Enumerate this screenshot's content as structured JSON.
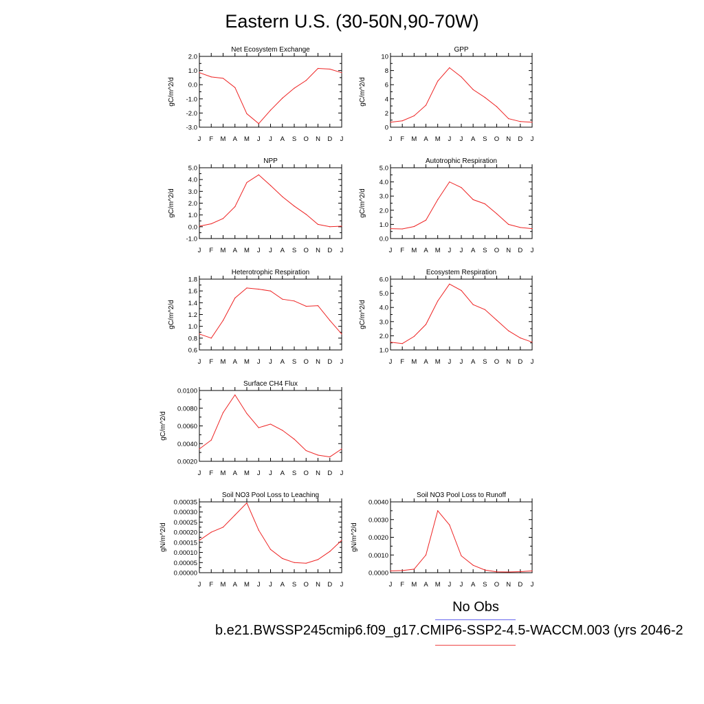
{
  "title": "Eastern U.S. (30-50N,90-70W)",
  "legend": {
    "obs_label": "No Obs",
    "case_label": "b.e21.BWSSP245cmip6.f09_g17.CMIP6-SSP2-4.5-WACCM.003 (yrs 2046-2",
    "obs_color": "#6666ee",
    "case_color": "#ee2222"
  },
  "chart_data": [
    {
      "type": "line",
      "title": "Net Ecosystem Exchange",
      "ylabel": "gC/m^2/d",
      "categories": [
        "J",
        "F",
        "M",
        "A",
        "M",
        "J",
        "J",
        "A",
        "S",
        "O",
        "N",
        "D",
        "J"
      ],
      "ylim": [
        -3.0,
        2.0
      ],
      "yticks": [
        "-3.0",
        "-2.0",
        "-1.0",
        "0.0",
        "1.0",
        "2.0"
      ],
      "series": [
        {
          "values": [
            0.85,
            0.55,
            0.45,
            -0.2,
            -2.05,
            -2.75,
            -1.8,
            -0.95,
            -0.25,
            0.3,
            1.15,
            1.1,
            0.85
          ]
        }
      ]
    },
    {
      "type": "line",
      "title": "GPP",
      "ylabel": "gC/m^2/d",
      "categories": [
        "J",
        "F",
        "M",
        "A",
        "M",
        "J",
        "J",
        "A",
        "S",
        "O",
        "N",
        "D",
        "J"
      ],
      "ylim": [
        0,
        10
      ],
      "yticks": [
        "0",
        "2",
        "4",
        "6",
        "8",
        "10"
      ],
      "series": [
        {
          "values": [
            0.7,
            0.9,
            1.6,
            3.1,
            6.5,
            8.4,
            7.1,
            5.3,
            4.2,
            2.9,
            1.2,
            0.8,
            0.7
          ]
        }
      ]
    },
    {
      "type": "line",
      "title": "NPP",
      "ylabel": "gC/m^2/d",
      "categories": [
        "J",
        "F",
        "M",
        "A",
        "M",
        "J",
        "J",
        "A",
        "S",
        "O",
        "N",
        "D",
        "J"
      ],
      "ylim": [
        -1.0,
        5.0
      ],
      "yticks": [
        "-1.0",
        "0.0",
        "1.0",
        "2.0",
        "3.0",
        "4.0",
        "5.0"
      ],
      "series": [
        {
          "values": [
            0.05,
            0.25,
            0.7,
            1.7,
            3.75,
            4.4,
            3.5,
            2.55,
            1.75,
            1.05,
            0.2,
            0.0,
            0.05
          ]
        }
      ]
    },
    {
      "type": "line",
      "title": "Autotrophic Respiration",
      "ylabel": "gC/m^2/d",
      "categories": [
        "J",
        "F",
        "M",
        "A",
        "M",
        "J",
        "J",
        "A",
        "S",
        "O",
        "N",
        "D",
        "J"
      ],
      "ylim": [
        0.0,
        5.0
      ],
      "yticks": [
        "0.0",
        "1.0",
        "2.0",
        "3.0",
        "4.0",
        "5.0"
      ],
      "series": [
        {
          "values": [
            0.7,
            0.68,
            0.85,
            1.3,
            2.75,
            4.0,
            3.6,
            2.75,
            2.45,
            1.75,
            1.0,
            0.78,
            0.7
          ]
        }
      ]
    },
    {
      "type": "line",
      "title": "Heterotrophic Respiration",
      "ylabel": "gC/m^2/d",
      "categories": [
        "J",
        "F",
        "M",
        "A",
        "M",
        "J",
        "J",
        "A",
        "S",
        "O",
        "N",
        "D",
        "J"
      ],
      "ylim": [
        0.6,
        1.8
      ],
      "yticks": [
        "0.6",
        "0.8",
        "1.0",
        "1.2",
        "1.4",
        "1.6",
        "1.8"
      ],
      "series": [
        {
          "values": [
            0.87,
            0.8,
            1.1,
            1.48,
            1.65,
            1.63,
            1.6,
            1.46,
            1.43,
            1.34,
            1.35,
            1.1,
            0.87
          ]
        }
      ]
    },
    {
      "type": "line",
      "title": "Ecosystem Respiration",
      "ylabel": "gC/m^2/d",
      "categories": [
        "J",
        "F",
        "M",
        "A",
        "M",
        "J",
        "J",
        "A",
        "S",
        "O",
        "N",
        "D",
        "J"
      ],
      "ylim": [
        1.0,
        6.0
      ],
      "yticks": [
        "1.0",
        "2.0",
        "3.0",
        "4.0",
        "5.0",
        "6.0"
      ],
      "series": [
        {
          "values": [
            1.55,
            1.45,
            1.95,
            2.8,
            4.45,
            5.65,
            5.2,
            4.2,
            3.85,
            3.1,
            2.35,
            1.85,
            1.55
          ]
        }
      ]
    },
    {
      "type": "line",
      "title": "Surface CH4 Flux",
      "ylabel": "gC/m^2/d",
      "categories": [
        "J",
        "F",
        "M",
        "A",
        "M",
        "J",
        "J",
        "A",
        "S",
        "O",
        "N",
        "D",
        "J"
      ],
      "ylim": [
        0.002,
        0.01
      ],
      "yticks": [
        "0.0020",
        "0.0040",
        "0.0060",
        "0.0080",
        "0.0100"
      ],
      "series": [
        {
          "values": [
            0.0034,
            0.0044,
            0.0075,
            0.0095,
            0.0074,
            0.0058,
            0.0062,
            0.0055,
            0.0045,
            0.0032,
            0.0027,
            0.0025,
            0.0034
          ]
        }
      ]
    },
    null,
    {
      "type": "line",
      "title": "Soil NO3 Pool Loss to Leaching",
      "ylabel": "gN/m^2/d",
      "categories": [
        "J",
        "F",
        "M",
        "A",
        "M",
        "J",
        "J",
        "A",
        "S",
        "O",
        "N",
        "D",
        "J"
      ],
      "ylim": [
        0,
        0.00035
      ],
      "yticks": [
        "0.00000",
        "0.00005",
        "0.00010",
        "0.00015",
        "0.00020",
        "0.00025",
        "0.00030",
        "0.00035"
      ],
      "series": [
        {
          "values": [
            0.00016,
            0.0002,
            0.000225,
            0.000285,
            0.000345,
            0.00021,
            0.000115,
            7e-05,
            5e-05,
            4.7e-05,
            6.5e-05,
            0.000105,
            0.00016
          ]
        }
      ]
    },
    {
      "type": "line",
      "title": "Soil NO3 Pool Loss to Runoff",
      "ylabel": "gN/m^2/d",
      "categories": [
        "J",
        "F",
        "M",
        "A",
        "M",
        "J",
        "J",
        "A",
        "S",
        "O",
        "N",
        "D",
        "J"
      ],
      "ylim": [
        0,
        0.004
      ],
      "yticks": [
        "0.0000",
        "0.0010",
        "0.0020",
        "0.0030",
        "0.0040"
      ],
      "series": [
        {
          "values": [
            0.0001,
            0.00012,
            0.0002,
            0.001,
            0.0035,
            0.0027,
            0.00095,
            0.00042,
            0.00015,
            5e-05,
            4e-05,
            6e-05,
            0.0001
          ]
        }
      ]
    }
  ]
}
